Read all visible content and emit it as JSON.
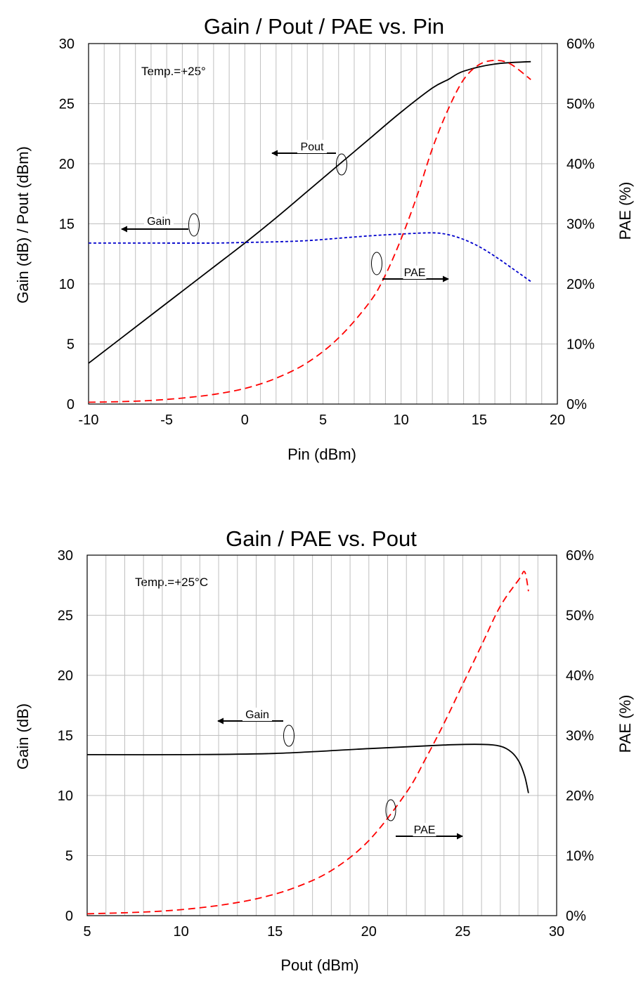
{
  "chart_data": [
    {
      "type": "line",
      "title": "Gain / Pout / PAE vs. Pin",
      "xlabel": "Pin (dBm)",
      "ylabel": "Gain (dB) / Pout (dBm)",
      "y2label": "PAE (%)",
      "xlim": [
        -10,
        20
      ],
      "ylim": [
        0,
        30
      ],
      "y2lim": [
        0,
        60
      ],
      "xticks": [
        -10,
        -5,
        0,
        5,
        10,
        15,
        20
      ],
      "yticks": [
        0,
        5,
        10,
        15,
        20,
        25,
        30
      ],
      "y2ticks": [
        "0%",
        "10%",
        "20%",
        "30%",
        "40%",
        "50%",
        "60%"
      ],
      "grid": true,
      "note": "Temp.=+25°",
      "series": [
        {
          "name": "Pout",
          "axis": "left",
          "color": "#000000",
          "dash": "",
          "x": [
            -10,
            -8,
            -6,
            -4,
            -2,
            0,
            2,
            4,
            6,
            8,
            10,
            12,
            13,
            14,
            16,
            18.3
          ],
          "y": [
            3.4,
            5.4,
            7.4,
            9.4,
            11.4,
            13.4,
            15.5,
            17.7,
            19.9,
            22.1,
            24.3,
            26.3,
            27.0,
            27.7,
            28.3,
            28.5
          ]
        },
        {
          "name": "Gain",
          "axis": "left",
          "color": "#0000cc",
          "dash": "4,3",
          "x": [
            -10,
            -6,
            -2,
            0,
            2,
            4,
            6,
            8,
            10,
            12,
            13,
            14,
            15,
            16,
            17,
            18.3
          ],
          "y": [
            13.4,
            13.4,
            13.4,
            13.45,
            13.5,
            13.6,
            13.8,
            14.0,
            14.15,
            14.25,
            14.1,
            13.7,
            13.1,
            12.3,
            11.4,
            10.2
          ]
        },
        {
          "name": "PAE",
          "axis": "right",
          "color": "#ff0000",
          "dash": "10,6",
          "x": [
            -10,
            -8,
            -6,
            -4,
            -2,
            0,
            2,
            4,
            6,
            8,
            9,
            10,
            11,
            12,
            13,
            14,
            15,
            16,
            17,
            18.3
          ],
          "y": [
            0.3,
            0.4,
            0.6,
            1.0,
            1.6,
            2.6,
            4.3,
            6.9,
            11.0,
            17.0,
            21.5,
            27.5,
            34.5,
            42.5,
            49.0,
            54.0,
            56.5,
            57.2,
            56.6,
            54.0
          ]
        }
      ],
      "annotations": [
        {
          "text": "Pout",
          "target": "left",
          "x": 6.3,
          "y": 20.0
        },
        {
          "text": "Gain",
          "target": "left",
          "x": -3.2,
          "y": 13.4
        },
        {
          "text": "PAE",
          "target": "right",
          "x": 8.6,
          "y": 20.0
        }
      ]
    },
    {
      "type": "line",
      "title": "Gain / PAE vs. Pout",
      "xlabel": "Pout (dBm)",
      "ylabel": "Gain (dB)",
      "y2label": "PAE (%)",
      "xlim": [
        5,
        30
      ],
      "ylim": [
        0,
        30
      ],
      "y2lim": [
        0,
        60
      ],
      "xticks": [
        5,
        10,
        15,
        20,
        25,
        30
      ],
      "yticks": [
        0,
        5,
        10,
        15,
        20,
        25,
        30
      ],
      "y2ticks": [
        "0%",
        "10%",
        "20%",
        "30%",
        "40%",
        "50%",
        "60%"
      ],
      "grid": true,
      "note": "Temp.=+25°C",
      "series": [
        {
          "name": "Gain",
          "axis": "left",
          "color": "#000000",
          "dash": "",
          "x": [
            5,
            10,
            15,
            20,
            24,
            26,
            27,
            27.6,
            28.0,
            28.3,
            28.5
          ],
          "y": [
            13.4,
            13.4,
            13.5,
            13.9,
            14.2,
            14.25,
            14.1,
            13.6,
            12.8,
            11.6,
            10.2
          ]
        },
        {
          "name": "PAE",
          "axis": "right",
          "color": "#ff0000",
          "dash": "10,6",
          "x": [
            5,
            8,
            10,
            12,
            14,
            16,
            18,
            20,
            22,
            23,
            24,
            25,
            26,
            27,
            28,
            28.3,
            28.5
          ],
          "y": [
            0.3,
            0.6,
            1.0,
            1.7,
            2.8,
            4.6,
            7.5,
            12.5,
            20.5,
            26.0,
            32.0,
            38.5,
            45.0,
            51.5,
            56.0,
            57.2,
            54.0
          ]
        }
      ],
      "annotations": [
        {
          "text": "Gain",
          "target": "left",
          "x": 15.8,
          "y": 13.4
        },
        {
          "text": "PAE",
          "target": "right",
          "x": 21.1,
          "y": 15.0
        }
      ]
    }
  ]
}
